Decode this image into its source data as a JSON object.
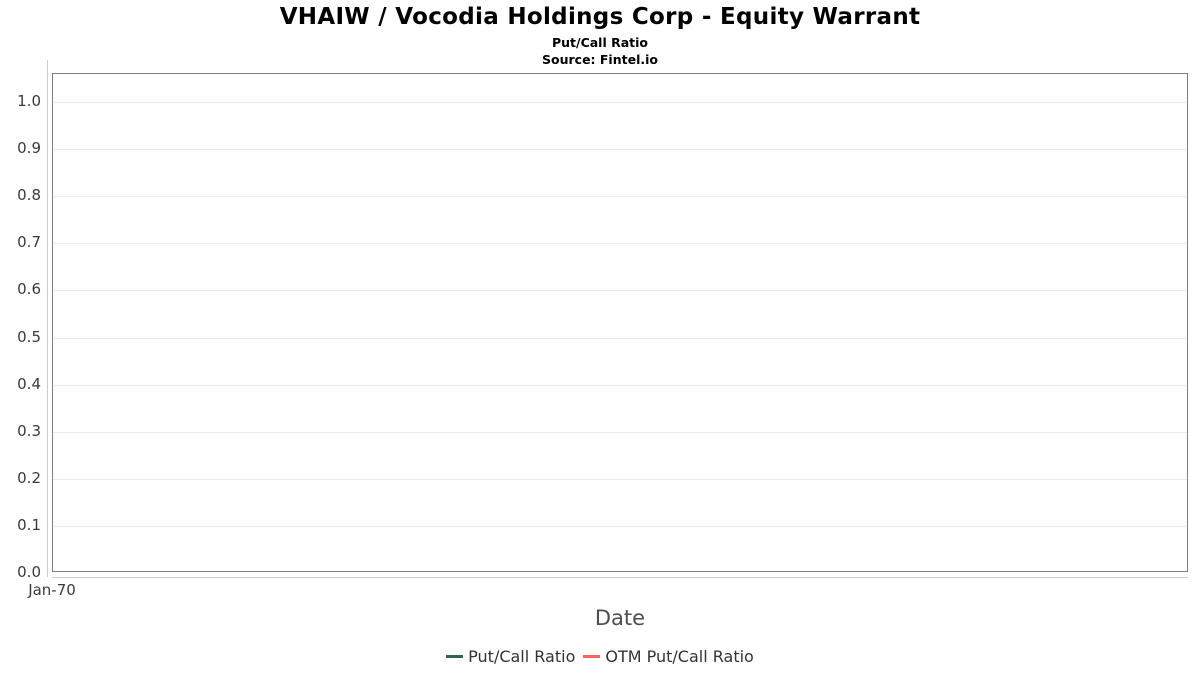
{
  "chart_data": {
    "type": "line",
    "title": "VHAIW / Vocodia Holdings Corp - Equity Warrant",
    "subtitle": "Put/Call Ratio",
    "source": "Source: Fintel.io",
    "xlabel": "Date",
    "ylabel": "",
    "ylim": [
      0.0,
      1.0
    ],
    "y_ticks": [
      "1.0",
      "0.9",
      "0.8",
      "0.7",
      "0.6",
      "0.5",
      "0.4",
      "0.3",
      "0.2",
      "0.1",
      "0.0"
    ],
    "x_ticks": [
      "Jan-70"
    ],
    "grid": "horizontal-only",
    "legend_position": "bottom-center",
    "plot_background": "#ffffff",
    "border_color": "#7f7f7f",
    "gridline_color": "#e9e9e9",
    "tickline_color": "#cccccc",
    "series": [
      {
        "name": "Put/Call Ratio",
        "color": "#2e6650",
        "x": [],
        "values": []
      },
      {
        "name": "OTM Put/Call Ratio",
        "color": "#f96461",
        "x": [],
        "values": []
      }
    ]
  }
}
